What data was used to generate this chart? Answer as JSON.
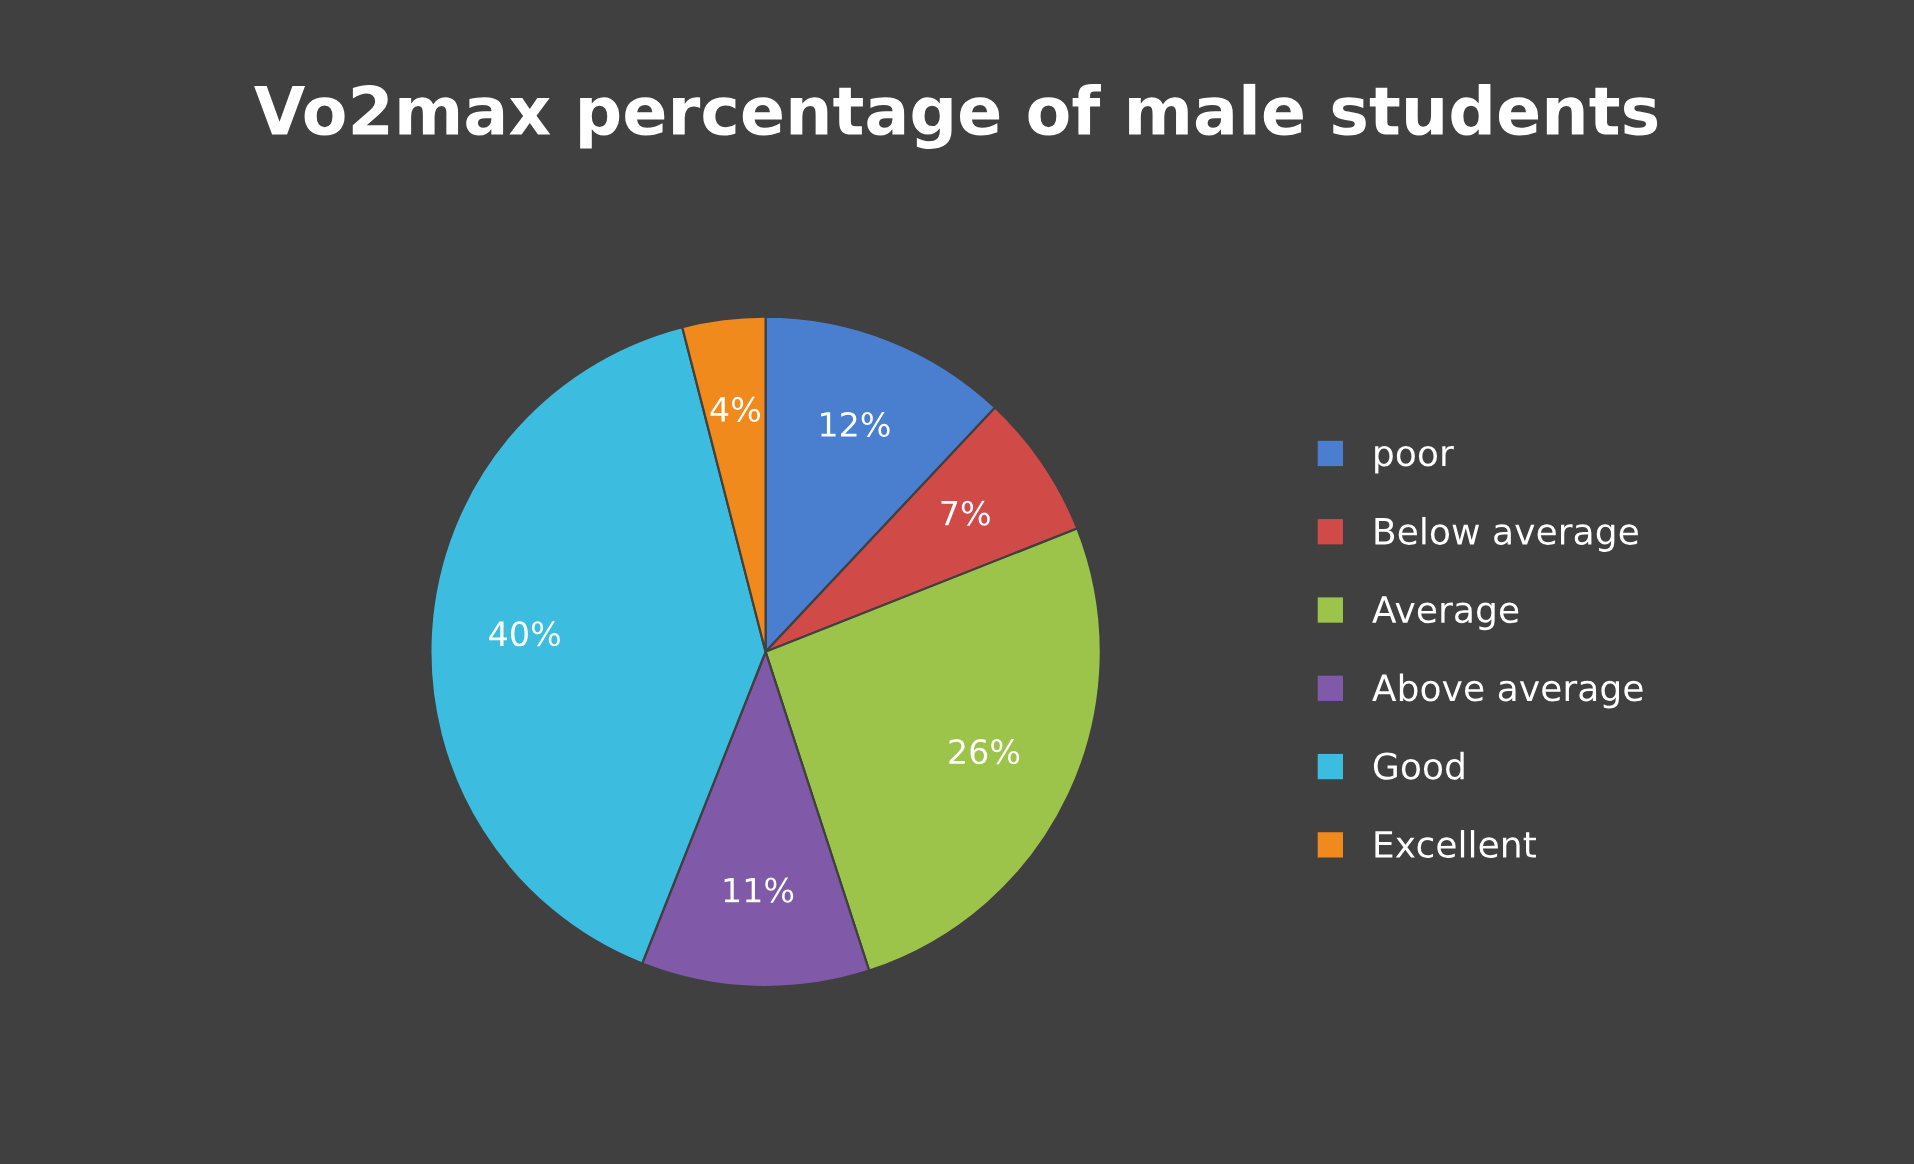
{
  "chart_data": {
    "type": "pie",
    "title": "Vo2max percentage of male students",
    "categories": [
      "poor",
      "Below average",
      "Average",
      "Above average",
      "Good",
      "Excellent"
    ],
    "values": [
      12,
      7,
      26,
      11,
      40,
      4
    ],
    "colors": [
      "#4a7fd0",
      "#d04a48",
      "#9cc44a",
      "#8059a8",
      "#3cbde0",
      "#f08a1c"
    ],
    "value_labels": [
      "12%",
      "7%",
      "26%",
      "11%",
      "40%",
      "4%"
    ],
    "legend": "right"
  }
}
